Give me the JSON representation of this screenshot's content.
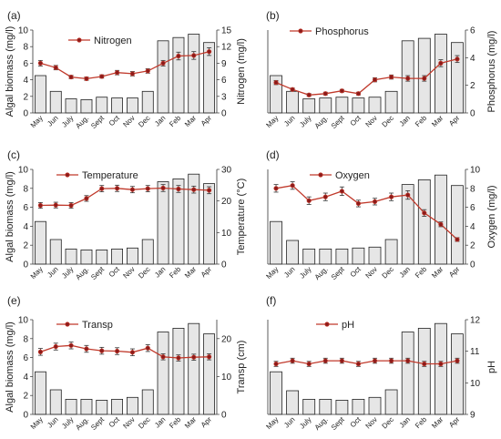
{
  "figure": {
    "months": [
      "May",
      "Jun",
      "July",
      "Aug.",
      "Sept",
      "Oct",
      "Nov",
      "Dec",
      "Jan",
      "Feb",
      "Mar",
      "Apr"
    ],
    "biomass": [
      4.5,
      2.6,
      1.7,
      1.6,
      1.7,
      1.8,
      1.8,
      2.6,
      8.7,
      9.1,
      9.5,
      8.5
    ],
    "series_color": "#c0392b",
    "bar_color": "#e6e6e6"
  },
  "chart_data": [
    {
      "type": "bar",
      "panel_label": "(a)",
      "categories": [
        "May",
        "Jun",
        "July",
        "Aug.",
        "Sept",
        "Oct",
        "Nov",
        "Dec",
        "Jan",
        "Feb",
        "Mar",
        "Apr"
      ],
      "ylabel": "Algal biomass (mg/l)",
      "ylim": [
        0,
        10
      ],
      "yticks": [
        0,
        2,
        4,
        6,
        8,
        10
      ],
      "legend": "Nitrogen",
      "series": [
        {
          "name": "Algal biomass",
          "axis": "left",
          "kind": "bar",
          "values": [
            4.5,
            2.6,
            1.7,
            1.6,
            1.9,
            1.8,
            1.8,
            2.6,
            8.7,
            9.1,
            9.5,
            8.5
          ]
        },
        {
          "name": "Nitrogen",
          "axis": "right",
          "kind": "line",
          "values": [
            9.0,
            8.2,
            6.5,
            6.2,
            6.6,
            7.3,
            7.1,
            7.6,
            9.0,
            10.3,
            10.4,
            11.1
          ],
          "error": [
            0.5,
            0.4,
            0.3,
            0.3,
            0.3,
            0.4,
            0.4,
            0.4,
            0.5,
            0.7,
            0.7,
            0.7
          ]
        }
      ],
      "y2label": "Nitrogen (mg/l)",
      "y2lim": [
        0,
        15
      ],
      "y2ticks": [
        0,
        3,
        6,
        9,
        12,
        15
      ]
    },
    {
      "type": "bar",
      "panel_label": "(b)",
      "categories": [
        "May",
        "Jun",
        "July",
        "Aug.",
        "Sept",
        "Oct",
        "Nov",
        "Dec",
        "Jan",
        "Feb",
        "Mar",
        "Apr"
      ],
      "ylabel": "",
      "ylim": [
        0,
        10
      ],
      "yticks": [],
      "legend": "Phosphorus",
      "series": [
        {
          "name": "Algal biomass",
          "axis": "left",
          "kind": "bar",
          "values": [
            4.5,
            2.6,
            1.7,
            1.8,
            1.9,
            1.8,
            1.9,
            2.6,
            8.7,
            9.0,
            9.5,
            8.5
          ]
        },
        {
          "name": "Phosphorus",
          "axis": "right",
          "kind": "line",
          "values": [
            2.2,
            1.7,
            1.3,
            1.4,
            1.6,
            1.4,
            2.4,
            2.6,
            2.5,
            2.5,
            3.6,
            3.9
          ],
          "error": [
            0.15,
            0.1,
            0.1,
            0.1,
            0.1,
            0.1,
            0.15,
            0.15,
            0.2,
            0.2,
            0.25,
            0.25
          ]
        }
      ],
      "y2label": "Phosphorus (mg/l)",
      "y2lim": [
        0,
        6
      ],
      "y2ticks": [
        0,
        2,
        4,
        6
      ]
    },
    {
      "type": "bar",
      "panel_label": "(c)",
      "categories": [
        "May",
        "Jun",
        "July",
        "Aug.",
        "Sept",
        "Oct",
        "Nov",
        "Dec",
        "Jan",
        "Feb",
        "Mar",
        "Apr"
      ],
      "ylabel": "Algal biomass (mg/l)",
      "ylim": [
        0,
        10
      ],
      "yticks": [
        0,
        2,
        4,
        6,
        8,
        10
      ],
      "legend": "Temperature",
      "series": [
        {
          "name": "Algal biomass",
          "axis": "left",
          "kind": "bar",
          "values": [
            4.5,
            2.6,
            1.6,
            1.5,
            1.5,
            1.6,
            1.7,
            2.6,
            8.7,
            9.0,
            9.5,
            8.5
          ]
        },
        {
          "name": "Temperature",
          "axis": "right",
          "kind": "line",
          "values": [
            18.6,
            18.7,
            18.6,
            20.8,
            23.9,
            24.0,
            23.6,
            23.9,
            24.1,
            23.8,
            23.6,
            23.4
          ],
          "error": [
            0.9,
            0.9,
            0.9,
            0.9,
            1.0,
            1.0,
            1.0,
            1.0,
            1.1,
            1.1,
            1.1,
            1.1
          ]
        }
      ],
      "y2label": "Temperature (°C)",
      "y2lim": [
        0,
        30
      ],
      "y2ticks": [
        0,
        10,
        20,
        30
      ]
    },
    {
      "type": "bar",
      "panel_label": "(d)",
      "categories": [
        "May",
        "Jun",
        "July",
        "Aug.",
        "Sept",
        "Oct",
        "Nov",
        "Dec",
        "Jan",
        "Feb",
        "Mar",
        "Apr"
      ],
      "ylabel": "",
      "ylim": [
        0,
        10
      ],
      "yticks": [],
      "legend": "Oxygen",
      "series": [
        {
          "name": "Algal biomass",
          "axis": "left",
          "kind": "bar",
          "values": [
            4.5,
            2.5,
            1.6,
            1.6,
            1.6,
            1.7,
            1.8,
            2.6,
            8.4,
            8.9,
            9.4,
            8.3
          ]
        },
        {
          "name": "Oxygen",
          "axis": "right",
          "kind": "line",
          "values": [
            8.0,
            8.3,
            6.7,
            7.1,
            7.7,
            6.4,
            6.6,
            7.1,
            7.3,
            5.4,
            4.2,
            2.6
          ],
          "error": [
            0.4,
            0.4,
            0.4,
            0.4,
            0.45,
            0.35,
            0.35,
            0.4,
            0.45,
            0.35,
            0.25,
            0.2
          ]
        }
      ],
      "y2label": "Oxygen (mg/l)",
      "y2lim": [
        0,
        10
      ],
      "y2ticks": [
        0,
        2,
        4,
        6,
        8,
        10
      ]
    },
    {
      "type": "bar",
      "panel_label": "(e)",
      "categories": [
        "May",
        "Jun",
        "July",
        "Aug.",
        "Sept",
        "Oct",
        "Nov",
        "Dec",
        "Jan",
        "Feb",
        "Mar",
        "Apr"
      ],
      "ylabel": "Algal biomass (mg/l)",
      "ylim": [
        0,
        10
      ],
      "yticks": [
        0,
        2,
        4,
        6,
        8,
        10
      ],
      "legend": "Transp",
      "series": [
        {
          "name": "Algal biomass",
          "axis": "left",
          "kind": "bar",
          "values": [
            4.5,
            2.6,
            1.6,
            1.6,
            1.5,
            1.6,
            1.8,
            2.6,
            8.7,
            9.1,
            9.6,
            8.5
          ]
        },
        {
          "name": "Transp",
          "axis": "right",
          "kind": "line",
          "values": [
            16.5,
            17.9,
            18.2,
            17.3,
            16.8,
            16.7,
            16.4,
            17.5,
            15.2,
            14.9,
            15.1,
            15.2
          ],
          "error": [
            0.9,
            0.9,
            0.9,
            0.9,
            0.9,
            0.9,
            0.9,
            0.9,
            0.8,
            0.8,
            0.8,
            0.8
          ]
        }
      ],
      "y2label": "Transp (cm)",
      "y2lim": [
        0,
        25
      ],
      "y2ticks": [
        0,
        10,
        20
      ]
    },
    {
      "type": "bar",
      "panel_label": "(f)",
      "categories": [
        "May",
        "Jun",
        "July",
        "Aug.",
        "Sept",
        "Oct",
        "Nov",
        "Dec",
        "Jan",
        "Feb",
        "Mar",
        "Apr"
      ],
      "ylabel": "",
      "ylim": [
        0,
        10
      ],
      "yticks": [],
      "legend": "pH",
      "series": [
        {
          "name": "Algal biomass",
          "axis": "left",
          "kind": "bar",
          "values": [
            4.5,
            2.5,
            1.6,
            1.6,
            1.5,
            1.6,
            1.8,
            2.6,
            8.7,
            9.1,
            9.6,
            8.5
          ]
        },
        {
          "name": "pH",
          "axis": "right",
          "kind": "line",
          "values": [
            10.6,
            10.7,
            10.6,
            10.7,
            10.7,
            10.6,
            10.7,
            10.7,
            10.7,
            10.6,
            10.6,
            10.7
          ],
          "error": [
            0.08,
            0.08,
            0.08,
            0.08,
            0.08,
            0.08,
            0.08,
            0.08,
            0.08,
            0.08,
            0.08,
            0.08
          ]
        }
      ],
      "y2label": "pH",
      "y2lim": [
        9,
        12
      ],
      "y2ticks": [
        9,
        10,
        11,
        12
      ]
    }
  ]
}
